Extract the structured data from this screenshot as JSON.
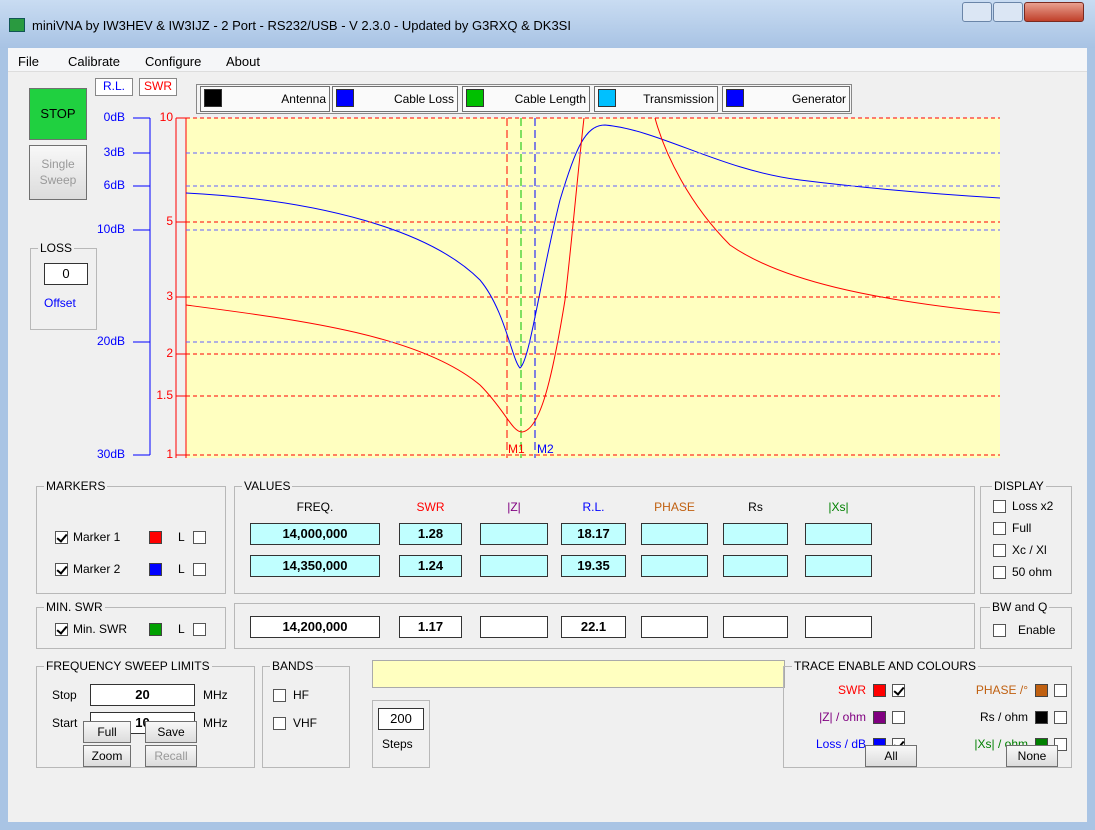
{
  "window": {
    "title": "miniVNA by IW3HEV & IW3IJZ - 2 Port - RS232/USB - V 2.3.0 - Updated by G3RXQ & DK3SI"
  },
  "menu": [
    "File",
    "Calibrate",
    "Configure",
    "About"
  ],
  "controls": {
    "stop": "STOP",
    "single_sweep": "Single Sweep",
    "rl": "R.L.",
    "swr": "SWR",
    "loss": "LOSS",
    "loss_value": "0",
    "offset": "Offset"
  },
  "tabs": [
    "Antenna",
    "Cable Loss",
    "Cable Length",
    "Transmission",
    "Generator"
  ],
  "plot": {
    "rl_ticks": [
      "0dB",
      "3dB",
      "6dB",
      "10dB",
      "20dB",
      "30dB"
    ],
    "swr_ticks": [
      "10",
      "5",
      "3",
      "2",
      "1.5",
      "1"
    ],
    "marker_labels": [
      "M1",
      "M2"
    ]
  },
  "markers": {
    "title": "MARKERS",
    "items": [
      {
        "label": "Marker 1",
        "l": "L",
        "color": "#ff0000"
      },
      {
        "label": "Marker 2",
        "l": "L",
        "color": "#0000ff"
      }
    ]
  },
  "values": {
    "title": "VALUES",
    "headers": [
      "FREQ.",
      "SWR",
      "|Z|",
      "R.L.",
      "PHASE",
      "Rs",
      "|Xs|"
    ],
    "rows": [
      {
        "freq": "14,000,000",
        "swr": "1.28",
        "rl": "18.17"
      },
      {
        "freq": "14,350,000",
        "swr": "1.24",
        "rl": "19.35"
      }
    ]
  },
  "min_swr": {
    "title": "MIN. SWR",
    "label": "Min. SWR",
    "l": "L",
    "color": "#00a000",
    "freq": "14,200,000",
    "swr": "1.17",
    "rl": "22.1"
  },
  "display": {
    "title": "DISPLAY",
    "options": [
      "Loss x2",
      "Full",
      "Xc / Xl",
      "50 ohm"
    ]
  },
  "bw_q": {
    "title": "BW and Q",
    "enable": "Enable"
  },
  "sweep": {
    "title": "FREQUENCY SWEEP LIMITS",
    "stop_label": "Stop",
    "stop": "20",
    "start_label": "Start",
    "start": "10",
    "unit": "MHz",
    "buttons": [
      "Full",
      "Save",
      "Zoom",
      "Recall"
    ]
  },
  "bands": {
    "title": "BANDS",
    "options": [
      "HF",
      "VHF"
    ]
  },
  "steps": {
    "value": "200",
    "label": "Steps"
  },
  "traces": {
    "title": "TRACE ENABLE AND COLOURS",
    "items": [
      {
        "label": "SWR",
        "color": "#ff0000",
        "checked": true
      },
      {
        "label": "PHASE /°",
        "color": "#c06010",
        "checked": false
      },
      {
        "label": "|Z| / ohm",
        "color": "#800080",
        "checked": false
      },
      {
        "label": "Rs / ohm",
        "color": "#000000",
        "checked": false
      },
      {
        "label": "Loss / dB",
        "color": "#0000ff",
        "checked": true
      },
      {
        "label": "|Xs| / ohm",
        "color": "#008000",
        "checked": false
      }
    ],
    "buttons": [
      "All",
      "None"
    ]
  }
}
